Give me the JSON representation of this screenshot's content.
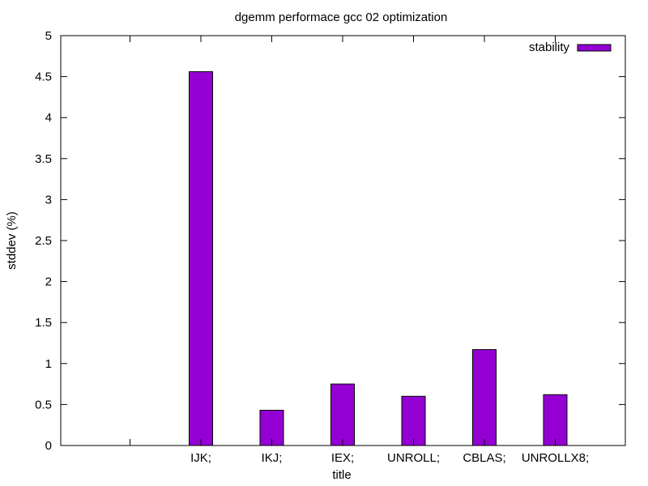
{
  "chart_data": {
    "type": "bar",
    "title": "dgemm performace gcc 02 optimization",
    "xlabel": "title",
    "ylabel": "stddev (%)",
    "categories": [
      "",
      "IJK;",
      "IKJ;",
      "IEX;",
      "UNROLL;",
      "CBLAS;",
      "UNROLLX8;"
    ],
    "series": [
      {
        "name": "stability",
        "values": [
          null,
          4.56,
          0.43,
          0.75,
          0.6,
          1.17,
          0.62
        ]
      }
    ],
    "ylim": [
      0,
      5
    ],
    "yticks": [
      0,
      0.5,
      1,
      1.5,
      2,
      2.5,
      3,
      3.5,
      4,
      4.5,
      5
    ],
    "ytick_labels": [
      "0",
      "0.5",
      "1",
      "1.5",
      "2",
      "2.5",
      "3",
      "3.5",
      "4",
      "4.5",
      "5"
    ],
    "grid": false,
    "legend_position": "top-right",
    "bar_color": "#9400d3"
  }
}
